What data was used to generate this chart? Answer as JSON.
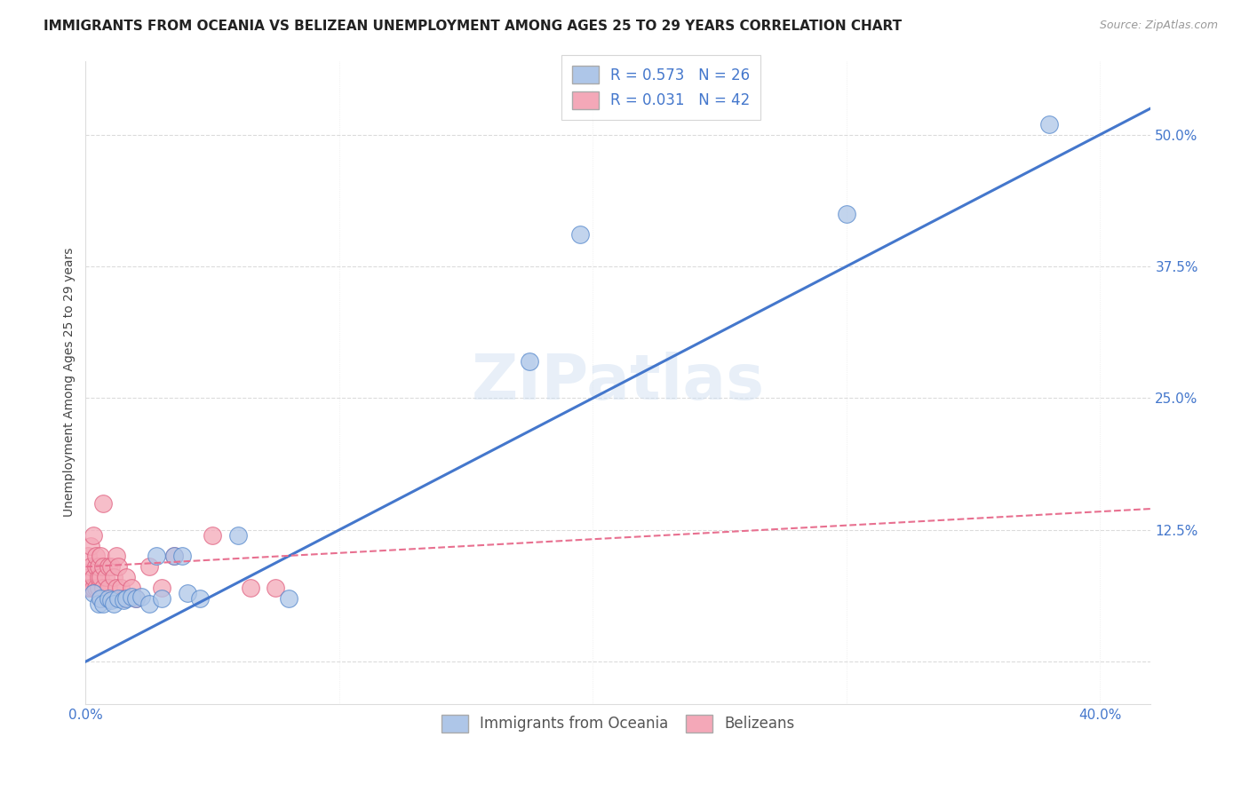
{
  "title": "IMMIGRANTS FROM OCEANIA VS BELIZEAN UNEMPLOYMENT AMONG AGES 25 TO 29 YEARS CORRELATION CHART",
  "source": "Source: ZipAtlas.com",
  "ylabel": "Unemployment Among Ages 25 to 29 years",
  "xlim": [
    0.0,
    0.42
  ],
  "ylim": [
    -0.04,
    0.57
  ],
  "xtick_positions": [
    0.0,
    0.1,
    0.2,
    0.3,
    0.4
  ],
  "xticklabels": [
    "0.0%",
    "",
    "",
    "",
    "40.0%"
  ],
  "ytick_positions": [
    0.0,
    0.125,
    0.25,
    0.375,
    0.5
  ],
  "yticklabels": [
    "",
    "12.5%",
    "25.0%",
    "37.5%",
    "50.0%"
  ],
  "background_color": "#ffffff",
  "grid_color": "#cccccc",
  "watermark": "ZIPatlas",
  "oceania_color": "#aec6e8",
  "belizean_color": "#f4a8b8",
  "oceania_edge_color": "#5588cc",
  "belizean_edge_color": "#e06080",
  "oceania_line_color": "#4477cc",
  "belizean_line_color": "#e87090",
  "oceania_x": [
    0.003,
    0.005,
    0.006,
    0.007,
    0.009,
    0.01,
    0.011,
    0.013,
    0.015,
    0.016,
    0.018,
    0.02,
    0.022,
    0.025,
    0.028,
    0.03,
    0.035,
    0.038,
    0.04,
    0.045,
    0.06,
    0.08,
    0.175,
    0.195,
    0.3,
    0.38
  ],
  "oceania_y": [
    0.065,
    0.055,
    0.06,
    0.055,
    0.06,
    0.058,
    0.055,
    0.06,
    0.058,
    0.06,
    0.062,
    0.06,
    0.062,
    0.055,
    0.1,
    0.06,
    0.1,
    0.1,
    0.065,
    0.06,
    0.12,
    0.06,
    0.285,
    0.405,
    0.425,
    0.51
  ],
  "belizean_x": [
    0.001,
    0.001,
    0.001,
    0.002,
    0.002,
    0.002,
    0.003,
    0.003,
    0.003,
    0.004,
    0.004,
    0.004,
    0.005,
    0.005,
    0.005,
    0.006,
    0.006,
    0.006,
    0.007,
    0.007,
    0.007,
    0.008,
    0.008,
    0.009,
    0.009,
    0.01,
    0.01,
    0.011,
    0.012,
    0.012,
    0.013,
    0.014,
    0.015,
    0.016,
    0.018,
    0.02,
    0.025,
    0.03,
    0.035,
    0.05,
    0.065,
    0.075
  ],
  "belizean_y": [
    0.07,
    0.08,
    0.1,
    0.07,
    0.09,
    0.11,
    0.07,
    0.08,
    0.12,
    0.07,
    0.09,
    0.1,
    0.07,
    0.08,
    0.09,
    0.06,
    0.08,
    0.1,
    0.07,
    0.09,
    0.15,
    0.06,
    0.08,
    0.07,
    0.09,
    0.06,
    0.09,
    0.08,
    0.07,
    0.1,
    0.09,
    0.07,
    0.06,
    0.08,
    0.07,
    0.06,
    0.09,
    0.07,
    0.1,
    0.12,
    0.07,
    0.07
  ],
  "oceania_line_x": [
    0.0,
    0.42
  ],
  "oceania_line_y": [
    0.0,
    0.525
  ],
  "belizean_line_x": [
    0.0,
    0.42
  ],
  "belizean_line_y": [
    0.09,
    0.145
  ],
  "legend_color_R": "#4477cc",
  "title_fontsize": 11,
  "axis_label_fontsize": 10,
  "tick_fontsize": 11,
  "legend_fontsize": 12,
  "watermark_fontsize": 52
}
